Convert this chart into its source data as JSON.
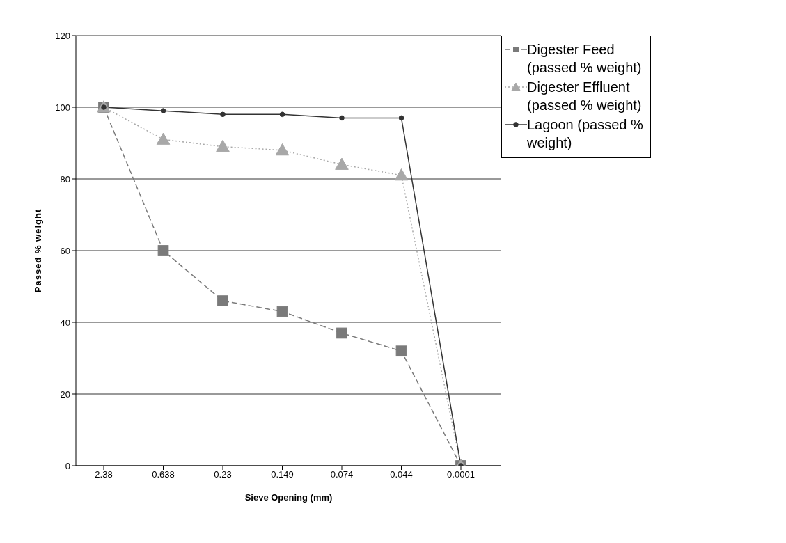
{
  "chart_data": {
    "type": "line",
    "xlabel": "Sieve Opening (mm)",
    "ylabel": "Passed % weight",
    "categories": [
      "2.38",
      "0.638",
      "0.23",
      "0.149",
      "0.074",
      "0.044",
      "0.0001"
    ],
    "series": [
      {
        "name": "Digester Feed (passed % weight)",
        "color": "#7a7a7a",
        "values": [
          100,
          60,
          46,
          43,
          37,
          32,
          0
        ],
        "marker": "square",
        "line_style": "dashed"
      },
      {
        "name": "Digester Effluent (passed % weight)",
        "color": "#a8a8a8",
        "values": [
          100,
          91,
          89,
          88,
          84,
          81,
          0
        ],
        "marker": "triangle",
        "line_style": "dotted"
      },
      {
        "name": "Lagoon  (passed % weight)",
        "color": "#333333",
        "values": [
          100,
          99,
          98,
          98,
          97,
          97,
          0
        ],
        "marker": "circle",
        "line_style": "solid"
      }
    ],
    "ylim": [
      0,
      120
    ],
    "yticks": [
      0,
      20,
      40,
      60,
      80,
      100,
      120
    ],
    "grid": "y",
    "legend": "top right"
  }
}
